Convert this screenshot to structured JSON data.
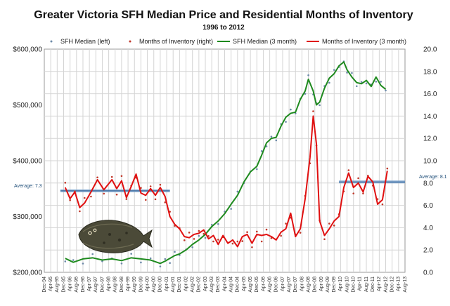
{
  "chart_data": {
    "type": "line",
    "title": "Greater Victoria SFH Median Price and Residential Months of Inventory",
    "subtitle": "1996 to 2012",
    "y_left": {
      "min": 200000,
      "max": 600000,
      "ticks": [
        "$200,000",
        "$300,000",
        "$400,000",
        "$500,000",
        "$600,000"
      ]
    },
    "y_right": {
      "min": 0,
      "max": 20,
      "ticks": [
        "0.0",
        "2.0",
        "4.0",
        "6.0",
        "8.0",
        "10.0",
        "12.0",
        "14.0",
        "16.0",
        "18.0",
        "20.0"
      ]
    },
    "x_ticks": [
      "Dec-94",
      "Apr-95",
      "Aug-95",
      "Dec-95",
      "Apr-96",
      "Aug-96",
      "Dec-96",
      "Apr-97",
      "Aug-97",
      "Dec-97",
      "Apr-98",
      "Aug-98",
      "Dec-98",
      "Apr-99",
      "Aug-99",
      "Dec-99",
      "Apr-00",
      "Aug-00",
      "Dec-00",
      "Apr-01",
      "Aug-01",
      "Dec-01",
      "Apr-02",
      "Aug-02",
      "Dec-02",
      "Apr-03",
      "Aug-03",
      "Dec-03",
      "Apr-04",
      "Aug-04",
      "Dec-04",
      "Apr-05",
      "Aug-05",
      "Dec-05",
      "Apr-06",
      "Aug-06",
      "Dec-06",
      "Apr-07",
      "Aug-07",
      "Dec-07",
      "Apr-08",
      "Aug-08",
      "Dec-08",
      "Apr-09",
      "Aug-09",
      "Dec-09",
      "Apr-10",
      "Aug-10",
      "Dec-10",
      "Apr-11",
      "Aug-11",
      "Dec-11",
      "Apr-12",
      "Aug-12",
      "Dec-12",
      "Apr-13",
      "Aug-13"
    ],
    "x_range": [
      "1994-12",
      "2013-08"
    ],
    "grid": true,
    "legend_position": "top",
    "legend": [
      {
        "label": "SFH Median (left)",
        "kind": "dots",
        "color": "#6d8aa8"
      },
      {
        "label": "Months of Inventory (right)",
        "kind": "dots",
        "color": "#c0392b"
      },
      {
        "label": "SFH Median (3 month)",
        "kind": "line",
        "color": "#1e8a1e"
      },
      {
        "label": "Months of Inventory (3 month)",
        "kind": "line",
        "color": "#e01010"
      }
    ],
    "series": [
      {
        "name": "SFH Median (3 month)",
        "axis": "left",
        "color": "#1e8a1e",
        "points": [
          [
            "1996-01",
            225000
          ],
          [
            "1996-06",
            218000
          ],
          [
            "1996-12",
            224000
          ],
          [
            "1997-06",
            226000
          ],
          [
            "1997-12",
            222000
          ],
          [
            "1998-06",
            224000
          ],
          [
            "1998-12",
            221000
          ],
          [
            "1999-06",
            226000
          ],
          [
            "1999-12",
            224000
          ],
          [
            "2000-06",
            222000
          ],
          [
            "2000-12",
            216000
          ],
          [
            "2001-03",
            220000
          ],
          [
            "2001-06",
            225000
          ],
          [
            "2001-09",
            230000
          ],
          [
            "2001-12",
            233000
          ],
          [
            "2002-04",
            240000
          ],
          [
            "2002-08",
            250000
          ],
          [
            "2002-12",
            258000
          ],
          [
            "2003-04",
            268000
          ],
          [
            "2003-08",
            282000
          ],
          [
            "2003-12",
            292000
          ],
          [
            "2004-04",
            305000
          ],
          [
            "2004-08",
            322000
          ],
          [
            "2004-12",
            338000
          ],
          [
            "2005-04",
            362000
          ],
          [
            "2005-08",
            380000
          ],
          [
            "2005-12",
            390000
          ],
          [
            "2006-03",
            410000
          ],
          [
            "2006-06",
            432000
          ],
          [
            "2006-09",
            440000
          ],
          [
            "2006-12",
            442000
          ],
          [
            "2007-03",
            462000
          ],
          [
            "2007-06",
            478000
          ],
          [
            "2007-09",
            485000
          ],
          [
            "2007-12",
            487000
          ],
          [
            "2008-03",
            510000
          ],
          [
            "2008-06",
            525000
          ],
          [
            "2008-08",
            546000
          ],
          [
            "2008-11",
            525000
          ],
          [
            "2009-01",
            500000
          ],
          [
            "2009-03",
            505000
          ],
          [
            "2009-06",
            530000
          ],
          [
            "2009-09",
            548000
          ],
          [
            "2009-12",
            556000
          ],
          [
            "2010-03",
            570000
          ],
          [
            "2010-06",
            577000
          ],
          [
            "2010-08",
            563000
          ],
          [
            "2010-11",
            550000
          ],
          [
            "2011-02",
            540000
          ],
          [
            "2011-05",
            538000
          ],
          [
            "2011-08",
            544000
          ],
          [
            "2011-11",
            533000
          ],
          [
            "2012-02",
            550000
          ],
          [
            "2012-05",
            535000
          ],
          [
            "2012-08",
            528000
          ]
        ]
      },
      {
        "name": "Months of Inventory (3 month)",
        "axis": "right",
        "color": "#e01010",
        "points": [
          [
            "1996-01",
            7.6
          ],
          [
            "1996-04",
            6.6
          ],
          [
            "1996-07",
            7.2
          ],
          [
            "1996-10",
            5.8
          ],
          [
            "1997-01",
            6.2
          ],
          [
            "1997-05",
            7.2
          ],
          [
            "1997-09",
            8.3
          ],
          [
            "1998-01",
            7.4
          ],
          [
            "1998-06",
            8.3
          ],
          [
            "1998-09",
            7.5
          ],
          [
            "1998-12",
            8.2
          ],
          [
            "1999-03",
            6.7
          ],
          [
            "1999-06",
            7.7
          ],
          [
            "1999-09",
            8.8
          ],
          [
            "1999-12",
            7.1
          ],
          [
            "2000-03",
            6.9
          ],
          [
            "2000-06",
            7.5
          ],
          [
            "2000-09",
            6.9
          ],
          [
            "2000-12",
            7.6
          ],
          [
            "2001-03",
            6.8
          ],
          [
            "2001-06",
            5.0
          ],
          [
            "2001-09",
            4.3
          ],
          [
            "2001-12",
            3.9
          ],
          [
            "2002-03",
            3.2
          ],
          [
            "2002-06",
            3.1
          ],
          [
            "2002-09",
            3.4
          ],
          [
            "2002-12",
            3.5
          ],
          [
            "2003-03",
            3.8
          ],
          [
            "2003-06",
            3.0
          ],
          [
            "2003-09",
            3.3
          ],
          [
            "2003-12",
            2.5
          ],
          [
            "2004-03",
            3.3
          ],
          [
            "2004-06",
            2.6
          ],
          [
            "2004-09",
            2.9
          ],
          [
            "2004-12",
            2.3
          ],
          [
            "2005-03",
            3.2
          ],
          [
            "2005-06",
            3.4
          ],
          [
            "2005-09",
            2.6
          ],
          [
            "2005-12",
            3.4
          ],
          [
            "2006-03",
            3.3
          ],
          [
            "2006-06",
            3.4
          ],
          [
            "2006-09",
            3.2
          ],
          [
            "2006-12",
            2.9
          ],
          [
            "2007-03",
            3.6
          ],
          [
            "2007-06",
            3.9
          ],
          [
            "2007-09",
            5.3
          ],
          [
            "2007-12",
            3.2
          ],
          [
            "2008-03",
            3.9
          ],
          [
            "2008-06",
            6.6
          ],
          [
            "2008-09",
            10.3
          ],
          [
            "2008-11",
            14.0
          ],
          [
            "2009-01",
            11.5
          ],
          [
            "2009-03",
            4.6
          ],
          [
            "2009-06",
            3.3
          ],
          [
            "2009-09",
            3.9
          ],
          [
            "2009-12",
            4.6
          ],
          [
            "2010-03",
            5.0
          ],
          [
            "2010-06",
            7.6
          ],
          [
            "2010-09",
            8.9
          ],
          [
            "2010-12",
            7.6
          ],
          [
            "2011-03",
            8.0
          ],
          [
            "2011-06",
            7.2
          ],
          [
            "2011-09",
            8.6
          ],
          [
            "2011-12",
            8.1
          ],
          [
            "2012-03",
            6.1
          ],
          [
            "2012-06",
            6.5
          ],
          [
            "2012-09",
            9.1
          ]
        ]
      }
    ],
    "annotations": [
      {
        "text": "Average: 7.3",
        "axis": "right",
        "value": 7.3,
        "from": "1995-10",
        "to": "2001-06"
      },
      {
        "text": "Average: 8.1",
        "axis": "right",
        "value": 8.1,
        "from": "2010-03",
        "to": "2013-08"
      }
    ]
  }
}
